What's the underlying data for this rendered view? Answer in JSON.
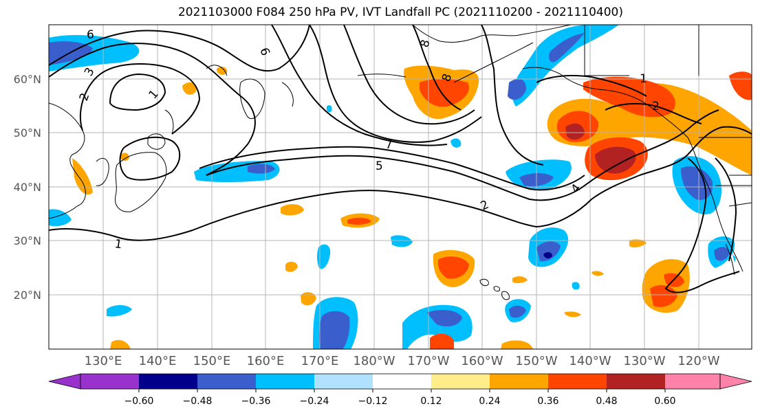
{
  "title": "2021103000 F084 250 hPa PV, IVT Landfall PC (2021110200 - 2021110400)",
  "lat_labels": [
    "60°N",
    "50°N",
    "40°N",
    "30°N",
    "20°N"
  ],
  "lon_labels": [
    "130°E",
    "140°E",
    "150°E",
    "160°E",
    "170°E",
    "180°W",
    "170°W",
    "160°W",
    "150°W",
    "140°W",
    "130°W",
    "120°W"
  ],
  "contour_labels": [
    "6",
    "6",
    "3",
    "2",
    "1",
    "8",
    "8",
    "7",
    "5",
    "4",
    "2",
    "1",
    "1",
    "2"
  ],
  "colorbar": {
    "ticks": [
      "−0.60",
      "−0.48",
      "−0.36",
      "−0.24",
      "−0.12",
      "0.12",
      "0.24",
      "0.36",
      "0.48",
      "0.60"
    ],
    "colors": [
      "#9932cc",
      "#00008b",
      "#3a5fcd",
      "#00bfff",
      "#b0e2ff",
      "#ffffff",
      "#ffec8b",
      "#ffa500",
      "#ff4500",
      "#b22222",
      "#ff82ab"
    ]
  },
  "colors": {
    "contour": "#000000",
    "grid": "#b4b4b4",
    "coast": "#000000"
  }
}
